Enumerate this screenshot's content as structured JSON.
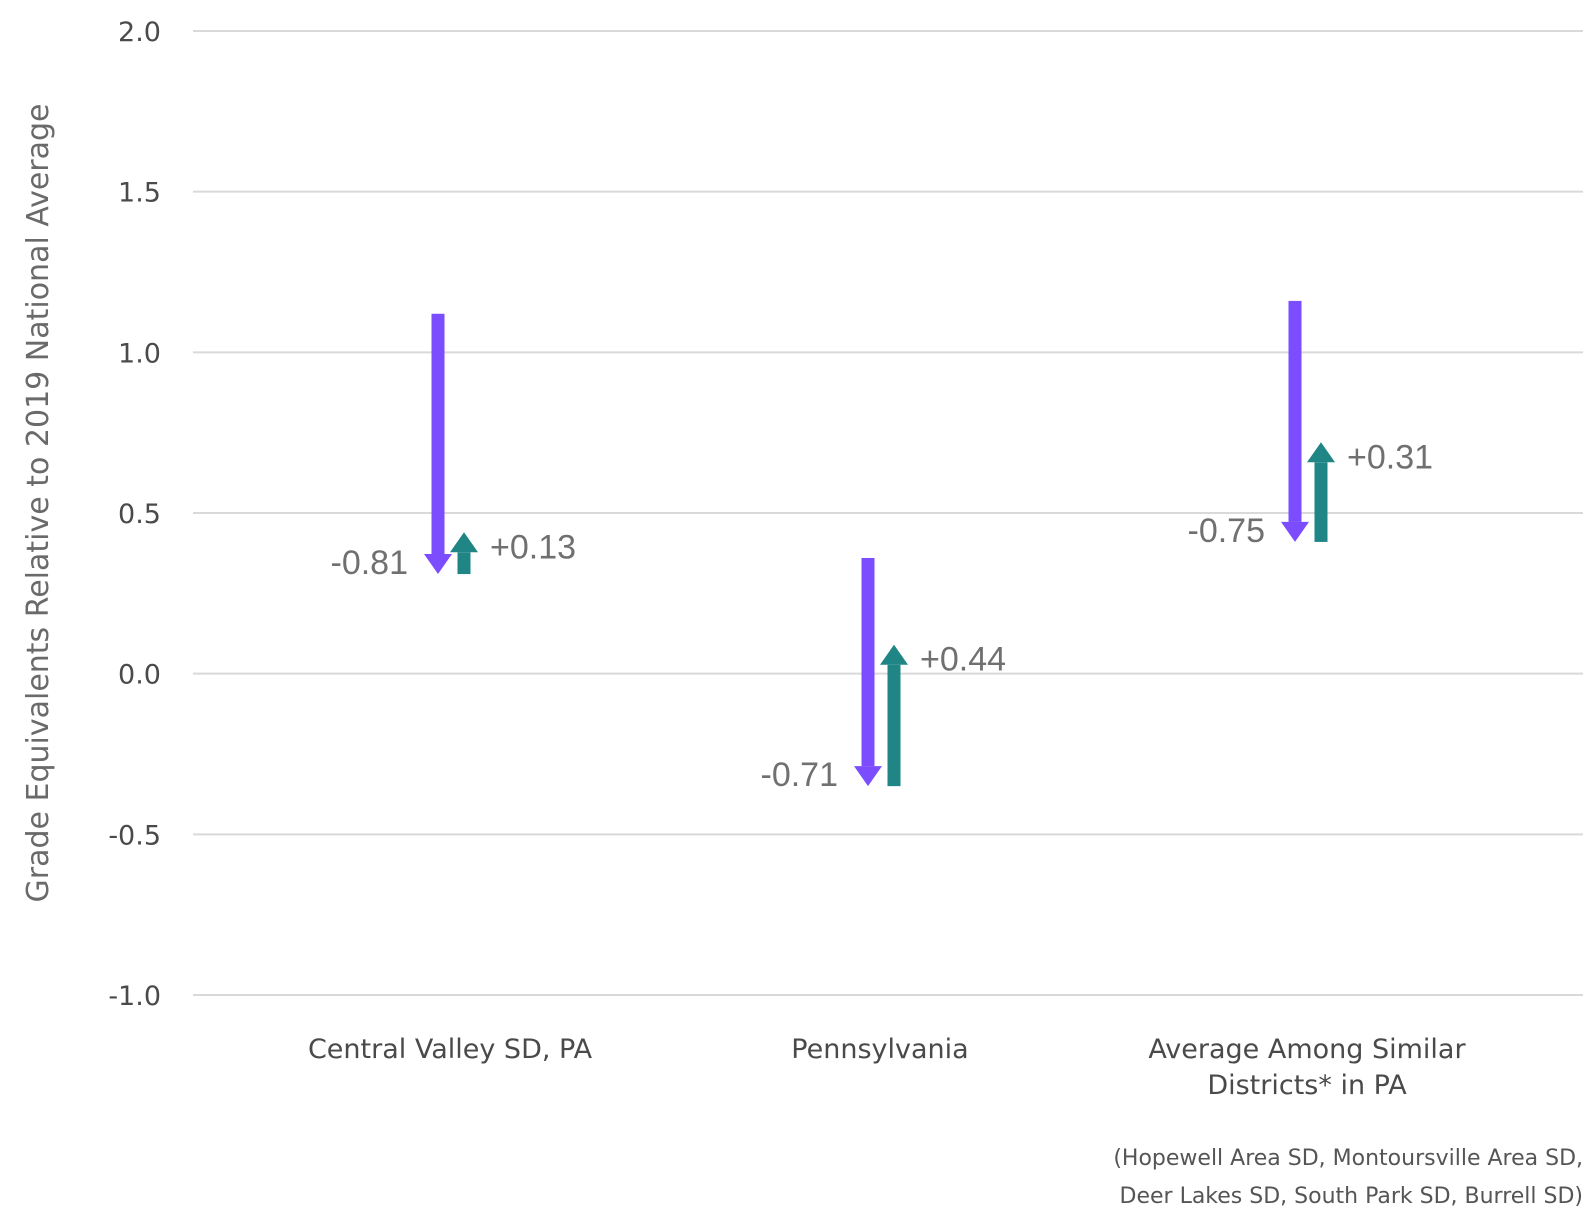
{
  "chart_data": {
    "type": "arrow",
    "ylabel": "Grade Equivalents Relative to 2019 National Average",
    "ylim": [
      -1.0,
      2.0
    ],
    "yticks": [
      2.0,
      1.5,
      1.0,
      0.5,
      0.0,
      -0.5,
      -1.0
    ],
    "ytick_labels": [
      "2.0",
      "1.5",
      "1.0",
      "0.5",
      "0.0",
      "-0.5",
      "-1.0"
    ],
    "grid": true,
    "categories": [
      [
        "Central Valley SD, PA"
      ],
      [
        "Pennsylvania"
      ],
      [
        "Average Among Similar",
        "Districts* in PA"
      ]
    ],
    "series": [
      {
        "color": "#7b4dff",
        "starts": [
          1.12,
          0.36,
          1.16
        ],
        "ends": [
          0.31,
          -0.35,
          0.41
        ],
        "labels": [
          "-0.81",
          "-0.71",
          "-0.75"
        ]
      },
      {
        "color": "#1f8585",
        "starts": [
          0.31,
          -0.35,
          0.41
        ],
        "ends": [
          0.44,
          0.09,
          0.72
        ],
        "labels": [
          "+0.13",
          "+0.44",
          "+0.31"
        ]
      }
    ]
  },
  "footnote": {
    "line1": "(Hopewell Area SD, Montoursville Area SD,",
    "line2": "Deer Lakes SD, South Park SD, Burrell SD)"
  }
}
